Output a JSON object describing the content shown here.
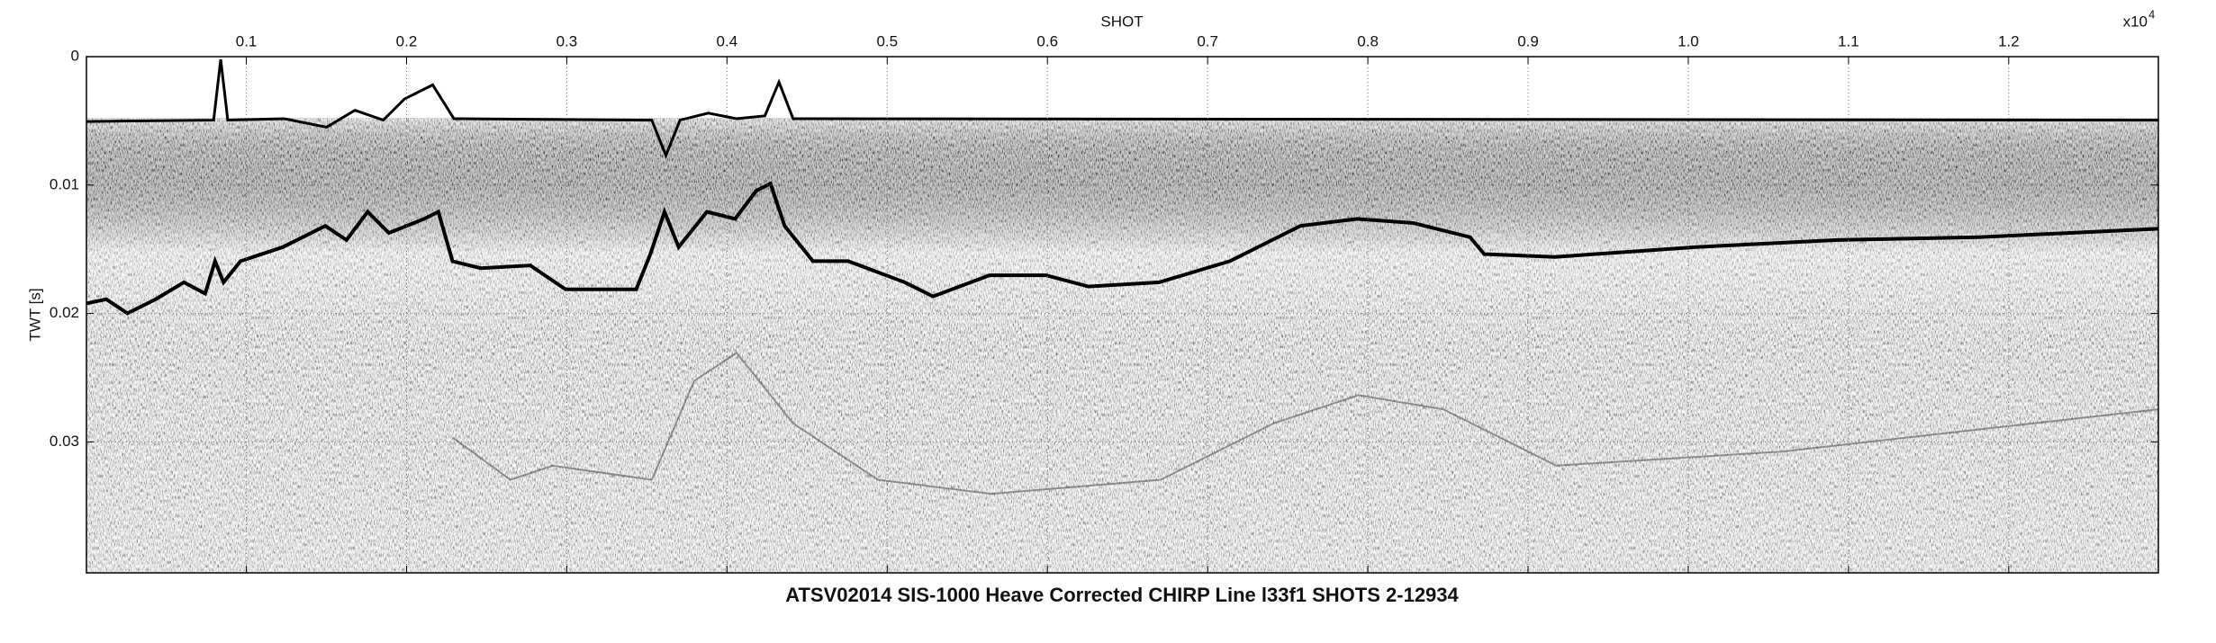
{
  "chart_data": {
    "type": "seismic",
    "title": "ATSV02014 SIS-1000 Heave Corrected CHIRP Line l33f1 SHOTS 2-12934",
    "xlabel": "SHOT",
    "ylabel": "TWT [s]",
    "x_multiplier": {
      "base": "x10",
      "exponent": "4"
    },
    "xlim": [
      0.0002,
      1.2934
    ],
    "ylim": [
      0,
      0.0402
    ],
    "xticks": [
      0.1,
      0.2,
      0.3,
      0.4,
      0.5,
      0.6,
      0.7,
      0.8,
      0.9,
      {
        "value": 1,
        "label": "1.0"
      },
      1.1,
      1.2
    ],
    "yticks": [
      0,
      0.01,
      0.02,
      0.03
    ],
    "grid": true
  }
}
